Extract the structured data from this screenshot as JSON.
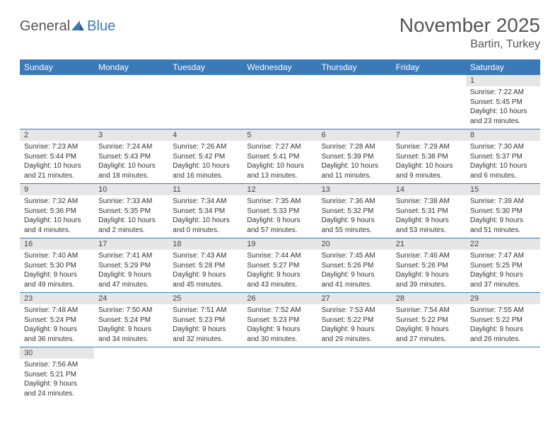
{
  "logo": {
    "general": "General",
    "blue": "Blue"
  },
  "title": "November 2025",
  "location": "Bartin, Turkey",
  "colors": {
    "header_bg": "#3a7ab8",
    "header_text": "#ffffff",
    "daynum_bg": "#e6e6e6",
    "border": "#3a7ab8",
    "text": "#333333"
  },
  "weekdays": [
    "Sunday",
    "Monday",
    "Tuesday",
    "Wednesday",
    "Thursday",
    "Friday",
    "Saturday"
  ],
  "weeks": [
    [
      {
        "blank": true
      },
      {
        "blank": true
      },
      {
        "blank": true
      },
      {
        "blank": true
      },
      {
        "blank": true
      },
      {
        "blank": true
      },
      {
        "num": "1",
        "sunrise": "Sunrise: 7:22 AM",
        "sunset": "Sunset: 5:45 PM",
        "daylight": "Daylight: 10 hours and 23 minutes."
      }
    ],
    [
      {
        "num": "2",
        "sunrise": "Sunrise: 7:23 AM",
        "sunset": "Sunset: 5:44 PM",
        "daylight": "Daylight: 10 hours and 21 minutes."
      },
      {
        "num": "3",
        "sunrise": "Sunrise: 7:24 AM",
        "sunset": "Sunset: 5:43 PM",
        "daylight": "Daylight: 10 hours and 18 minutes."
      },
      {
        "num": "4",
        "sunrise": "Sunrise: 7:26 AM",
        "sunset": "Sunset: 5:42 PM",
        "daylight": "Daylight: 10 hours and 16 minutes."
      },
      {
        "num": "5",
        "sunrise": "Sunrise: 7:27 AM",
        "sunset": "Sunset: 5:41 PM",
        "daylight": "Daylight: 10 hours and 13 minutes."
      },
      {
        "num": "6",
        "sunrise": "Sunrise: 7:28 AM",
        "sunset": "Sunset: 5:39 PM",
        "daylight": "Daylight: 10 hours and 11 minutes."
      },
      {
        "num": "7",
        "sunrise": "Sunrise: 7:29 AM",
        "sunset": "Sunset: 5:38 PM",
        "daylight": "Daylight: 10 hours and 9 minutes."
      },
      {
        "num": "8",
        "sunrise": "Sunrise: 7:30 AM",
        "sunset": "Sunset: 5:37 PM",
        "daylight": "Daylight: 10 hours and 6 minutes."
      }
    ],
    [
      {
        "num": "9",
        "sunrise": "Sunrise: 7:32 AM",
        "sunset": "Sunset: 5:36 PM",
        "daylight": "Daylight: 10 hours and 4 minutes."
      },
      {
        "num": "10",
        "sunrise": "Sunrise: 7:33 AM",
        "sunset": "Sunset: 5:35 PM",
        "daylight": "Daylight: 10 hours and 2 minutes."
      },
      {
        "num": "11",
        "sunrise": "Sunrise: 7:34 AM",
        "sunset": "Sunset: 5:34 PM",
        "daylight": "Daylight: 10 hours and 0 minutes."
      },
      {
        "num": "12",
        "sunrise": "Sunrise: 7:35 AM",
        "sunset": "Sunset: 5:33 PM",
        "daylight": "Daylight: 9 hours and 57 minutes."
      },
      {
        "num": "13",
        "sunrise": "Sunrise: 7:36 AM",
        "sunset": "Sunset: 5:32 PM",
        "daylight": "Daylight: 9 hours and 55 minutes."
      },
      {
        "num": "14",
        "sunrise": "Sunrise: 7:38 AM",
        "sunset": "Sunset: 5:31 PM",
        "daylight": "Daylight: 9 hours and 53 minutes."
      },
      {
        "num": "15",
        "sunrise": "Sunrise: 7:39 AM",
        "sunset": "Sunset: 5:30 PM",
        "daylight": "Daylight: 9 hours and 51 minutes."
      }
    ],
    [
      {
        "num": "16",
        "sunrise": "Sunrise: 7:40 AM",
        "sunset": "Sunset: 5:30 PM",
        "daylight": "Daylight: 9 hours and 49 minutes."
      },
      {
        "num": "17",
        "sunrise": "Sunrise: 7:41 AM",
        "sunset": "Sunset: 5:29 PM",
        "daylight": "Daylight: 9 hours and 47 minutes."
      },
      {
        "num": "18",
        "sunrise": "Sunrise: 7:43 AM",
        "sunset": "Sunset: 5:28 PM",
        "daylight": "Daylight: 9 hours and 45 minutes."
      },
      {
        "num": "19",
        "sunrise": "Sunrise: 7:44 AM",
        "sunset": "Sunset: 5:27 PM",
        "daylight": "Daylight: 9 hours and 43 minutes."
      },
      {
        "num": "20",
        "sunrise": "Sunrise: 7:45 AM",
        "sunset": "Sunset: 5:26 PM",
        "daylight": "Daylight: 9 hours and 41 minutes."
      },
      {
        "num": "21",
        "sunrise": "Sunrise: 7:46 AM",
        "sunset": "Sunset: 5:26 PM",
        "daylight": "Daylight: 9 hours and 39 minutes."
      },
      {
        "num": "22",
        "sunrise": "Sunrise: 7:47 AM",
        "sunset": "Sunset: 5:25 PM",
        "daylight": "Daylight: 9 hours and 37 minutes."
      }
    ],
    [
      {
        "num": "23",
        "sunrise": "Sunrise: 7:48 AM",
        "sunset": "Sunset: 5:24 PM",
        "daylight": "Daylight: 9 hours and 36 minutes."
      },
      {
        "num": "24",
        "sunrise": "Sunrise: 7:50 AM",
        "sunset": "Sunset: 5:24 PM",
        "daylight": "Daylight: 9 hours and 34 minutes."
      },
      {
        "num": "25",
        "sunrise": "Sunrise: 7:51 AM",
        "sunset": "Sunset: 5:23 PM",
        "daylight": "Daylight: 9 hours and 32 minutes."
      },
      {
        "num": "26",
        "sunrise": "Sunrise: 7:52 AM",
        "sunset": "Sunset: 5:23 PM",
        "daylight": "Daylight: 9 hours and 30 minutes."
      },
      {
        "num": "27",
        "sunrise": "Sunrise: 7:53 AM",
        "sunset": "Sunset: 5:22 PM",
        "daylight": "Daylight: 9 hours and 29 minutes."
      },
      {
        "num": "28",
        "sunrise": "Sunrise: 7:54 AM",
        "sunset": "Sunset: 5:22 PM",
        "daylight": "Daylight: 9 hours and 27 minutes."
      },
      {
        "num": "29",
        "sunrise": "Sunrise: 7:55 AM",
        "sunset": "Sunset: 5:22 PM",
        "daylight": "Daylight: 9 hours and 26 minutes."
      }
    ],
    [
      {
        "num": "30",
        "sunrise": "Sunrise: 7:56 AM",
        "sunset": "Sunset: 5:21 PM",
        "daylight": "Daylight: 9 hours and 24 minutes."
      },
      {
        "blank": true
      },
      {
        "blank": true
      },
      {
        "blank": true
      },
      {
        "blank": true
      },
      {
        "blank": true
      },
      {
        "blank": true
      }
    ]
  ]
}
